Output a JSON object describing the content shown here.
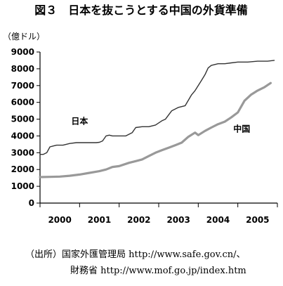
{
  "figure_title": "図３　日本を抜こうとする中国の外貨準備",
  "source_lines": [
    "（出所）国家外匯管理局 http://www.safe.gov.cn/、",
    "財務省 http://www.mof.go.jp/index.htm"
  ],
  "colors": {
    "japan": "#333333",
    "china": "#999999",
    "axis": "#000000"
  },
  "chart_data": {
    "type": "line",
    "title": "図３　日本を抜こうとする中国の外貨準備",
    "ylabel": "（億ドル）",
    "xlabel": "",
    "ylim": [
      0,
      9000
    ],
    "yticks": [
      "0",
      "1000",
      "2000",
      "3000",
      "4000",
      "5000",
      "6000",
      "7000",
      "8000",
      "9000"
    ],
    "xlim": [
      2000.0,
      2006.0
    ],
    "x_tick_labels": [
      {
        "x": 2000.5,
        "label": "2000"
      },
      {
        "x": 2001.5,
        "label": "2001"
      },
      {
        "x": 2002.5,
        "label": "2002"
      },
      {
        "x": 2003.5,
        "label": "2003"
      },
      {
        "x": 2004.5,
        "label": "2004"
      },
      {
        "x": 2005.5,
        "label": "2005"
      }
    ],
    "year_boundaries": [
      2001,
      2002,
      2003,
      2004,
      2005
    ],
    "grid": false,
    "legend": "none",
    "series": [
      {
        "name": "日本",
        "color": "#333333",
        "label_x": 2001.0,
        "label_y": 4700,
        "points": [
          [
            2000.0,
            2900
          ],
          [
            2000.08,
            2900
          ],
          [
            2000.17,
            3000
          ],
          [
            2000.25,
            3350
          ],
          [
            2000.33,
            3400
          ],
          [
            2000.42,
            3450
          ],
          [
            2000.58,
            3450
          ],
          [
            2000.75,
            3550
          ],
          [
            2000.92,
            3600
          ],
          [
            2001.08,
            3600
          ],
          [
            2001.25,
            3600
          ],
          [
            2001.42,
            3600
          ],
          [
            2001.5,
            3620
          ],
          [
            2001.58,
            3700
          ],
          [
            2001.67,
            4000
          ],
          [
            2001.75,
            4050
          ],
          [
            2001.83,
            4000
          ],
          [
            2002.0,
            4000
          ],
          [
            2002.17,
            4000
          ],
          [
            2002.33,
            4200
          ],
          [
            2002.42,
            4500
          ],
          [
            2002.58,
            4550
          ],
          [
            2002.75,
            4550
          ],
          [
            2002.92,
            4650
          ],
          [
            2003.08,
            4900
          ],
          [
            2003.17,
            5000
          ],
          [
            2003.33,
            5500
          ],
          [
            2003.5,
            5700
          ],
          [
            2003.67,
            5800
          ],
          [
            2003.83,
            6450
          ],
          [
            2003.92,
            6700
          ],
          [
            2004.08,
            7300
          ],
          [
            2004.17,
            7650
          ],
          [
            2004.25,
            8050
          ],
          [
            2004.33,
            8200
          ],
          [
            2004.5,
            8300
          ],
          [
            2004.67,
            8300
          ],
          [
            2004.83,
            8350
          ],
          [
            2005.0,
            8400
          ],
          [
            2005.25,
            8400
          ],
          [
            2005.5,
            8450
          ],
          [
            2005.75,
            8450
          ],
          [
            2005.92,
            8500
          ]
        ]
      },
      {
        "name": "中国",
        "color": "#999999",
        "label_x": 2005.1,
        "label_y": 4250,
        "points": [
          [
            2000.0,
            1550
          ],
          [
            2000.25,
            1560
          ],
          [
            2000.5,
            1580
          ],
          [
            2000.75,
            1630
          ],
          [
            2001.0,
            1700
          ],
          [
            2001.25,
            1800
          ],
          [
            2001.5,
            1900
          ],
          [
            2001.67,
            2000
          ],
          [
            2001.83,
            2150
          ],
          [
            2002.0,
            2200
          ],
          [
            2002.25,
            2400
          ],
          [
            2002.42,
            2500
          ],
          [
            2002.58,
            2600
          ],
          [
            2002.75,
            2800
          ],
          [
            2002.92,
            3000
          ],
          [
            2003.08,
            3150
          ],
          [
            2003.25,
            3300
          ],
          [
            2003.42,
            3450
          ],
          [
            2003.58,
            3600
          ],
          [
            2003.75,
            3950
          ],
          [
            2003.92,
            4200
          ],
          [
            2004.0,
            4050
          ],
          [
            2004.17,
            4300
          ],
          [
            2004.33,
            4500
          ],
          [
            2004.5,
            4700
          ],
          [
            2004.67,
            4850
          ],
          [
            2004.83,
            5100
          ],
          [
            2005.0,
            5400
          ],
          [
            2005.17,
            6100
          ],
          [
            2005.33,
            6450
          ],
          [
            2005.5,
            6700
          ],
          [
            2005.67,
            6900
          ],
          [
            2005.83,
            7150
          ]
        ]
      }
    ]
  }
}
